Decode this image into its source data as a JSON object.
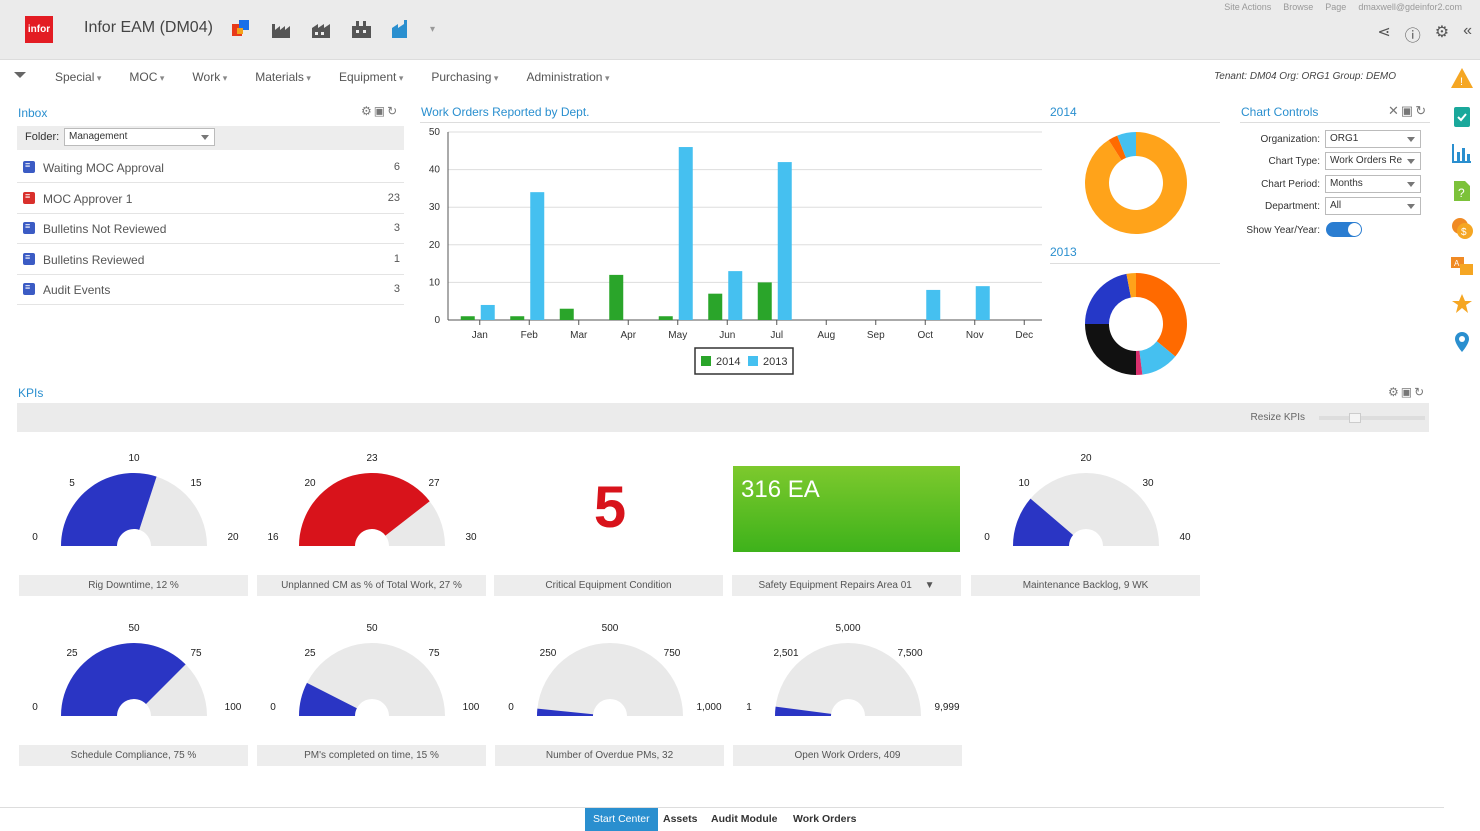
{
  "app": {
    "logo": "infor",
    "title": "Infor EAM (DM04)"
  },
  "site_bar": {
    "site_actions": "Site Actions",
    "browse": "Browse",
    "page": "Page",
    "user": "dmaxwell@gdeinfor2.com"
  },
  "nav": {
    "items": [
      "Special",
      "MOC",
      "Work",
      "Materials",
      "Equipment",
      "Purchasing",
      "Administration"
    ],
    "tenant": "Tenant: DM04 Org: ORG1 Group: DEMO"
  },
  "inbox": {
    "title": "Inbox",
    "folder_label": "Folder:",
    "folder_value": "Management",
    "items": [
      {
        "label": "Waiting MOC Approval",
        "count": "6",
        "color": "#3b5bc4"
      },
      {
        "label": "MOC Approver 1",
        "count": "23",
        "color": "#d9302c"
      },
      {
        "label": "Bulletins Not Reviewed",
        "count": "3",
        "color": "#3b5bc4"
      },
      {
        "label": "Bulletins Reviewed",
        "count": "1",
        "color": "#3b5bc4"
      },
      {
        "label": "Audit Events",
        "count": "3",
        "color": "#3b5bc4"
      }
    ]
  },
  "chart_data": [
    {
      "type": "bar",
      "title": "Work Orders Reported by Dept.",
      "categories": [
        "Jan",
        "Feb",
        "Mar",
        "Apr",
        "May",
        "Jun",
        "Jul",
        "Aug",
        "Sep",
        "Oct",
        "Nov",
        "Dec"
      ],
      "ylim": [
        0,
        50
      ],
      "yticks": [
        0,
        10,
        20,
        30,
        40,
        50
      ],
      "series": [
        {
          "name": "2014",
          "color": "#2aa52a",
          "values": [
            1,
            1,
            3,
            12,
            1,
            7,
            10,
            0,
            0,
            0,
            0,
            0
          ]
        },
        {
          "name": "2013",
          "color": "#45c0f0",
          "values": [
            4,
            34,
            0,
            0,
            46,
            13,
            42,
            0,
            0,
            8,
            9,
            0
          ]
        }
      ],
      "legend": "bottom"
    },
    {
      "type": "pie",
      "title": "2014",
      "slices": [
        {
          "color": "#ffa31a",
          "value": 91
        },
        {
          "color": "#ff6a00",
          "value": 3
        },
        {
          "color": "#45c0f0",
          "value": 6
        }
      ]
    },
    {
      "type": "pie",
      "title": "2013",
      "slices": [
        {
          "color": "#ff6a00",
          "value": 36
        },
        {
          "color": "#45c0f0",
          "value": 12
        },
        {
          "color": "#d9306d",
          "value": 2
        },
        {
          "color": "#111111",
          "value": 25
        },
        {
          "color": "#2538c8",
          "value": 22
        },
        {
          "color": "#ffa31a",
          "value": 3
        }
      ]
    }
  ],
  "chart_controls": {
    "title": "Chart Controls",
    "organization_label": "Organization:",
    "organization": "ORG1",
    "chart_type_label": "Chart Type:",
    "chart_type": "Work Orders Re",
    "chart_period_label": "Chart Period:",
    "chart_period": "Months",
    "department_label": "Department:",
    "department": "All",
    "yoy_label": "Show Year/Year:",
    "yoy": true
  },
  "kpis": {
    "title": "KPIs",
    "resize_label": "Resize KPIs",
    "gauges": [
      {
        "caption": "Rig Downtime, 12 %",
        "ticks": [
          "0",
          "5",
          "10",
          "15",
          "20"
        ],
        "fraction": 0.6,
        "color": "#2a35c4"
      },
      {
        "caption": "Unplanned CM as % of Total Work, 27 %",
        "ticks": [
          "16",
          "20",
          "23",
          "27",
          "30"
        ],
        "fraction": 0.79,
        "color": "#d8131b"
      },
      {
        "caption": "Maintenance Backlog, 9 WK",
        "ticks": [
          "0",
          "10",
          "20",
          "30",
          "40"
        ],
        "fraction": 0.225,
        "color": "#2a35c4"
      },
      {
        "caption": "Schedule Compliance, 75 %",
        "ticks": [
          "0",
          "25",
          "50",
          "75",
          "100"
        ],
        "fraction": 0.75,
        "color": "#2a35c4"
      },
      {
        "caption": "PM's completed on time, 15 %",
        "ticks": [
          "0",
          "25",
          "50",
          "75",
          "100"
        ],
        "fraction": 0.15,
        "color": "#2a35c4"
      },
      {
        "caption": "Number of Overdue PMs, 32",
        "ticks": [
          "0",
          "250",
          "500",
          "750",
          "1,000"
        ],
        "fraction": 0.032,
        "color": "#2a35c4"
      },
      {
        "caption": "Open Work Orders, 409",
        "ticks": [
          "1",
          "2,501",
          "5,000",
          "7,500",
          "9,999"
        ],
        "fraction": 0.041,
        "color": "#2a35c4"
      }
    ],
    "critical_caption": "Critical Equipment Condition",
    "critical_value": "5",
    "safety_caption": "Safety Equipment Repairs Area 01",
    "safety_value": "316 EA"
  },
  "tabs": [
    "Start Center",
    "Assets",
    "Audit Module",
    "Work Orders"
  ],
  "side_icons": [
    "warning-icon",
    "checklist-icon",
    "bar-chart-icon",
    "help-doc-icon",
    "money-icon",
    "translate-icon",
    "star-icon",
    "location-pin-icon"
  ]
}
